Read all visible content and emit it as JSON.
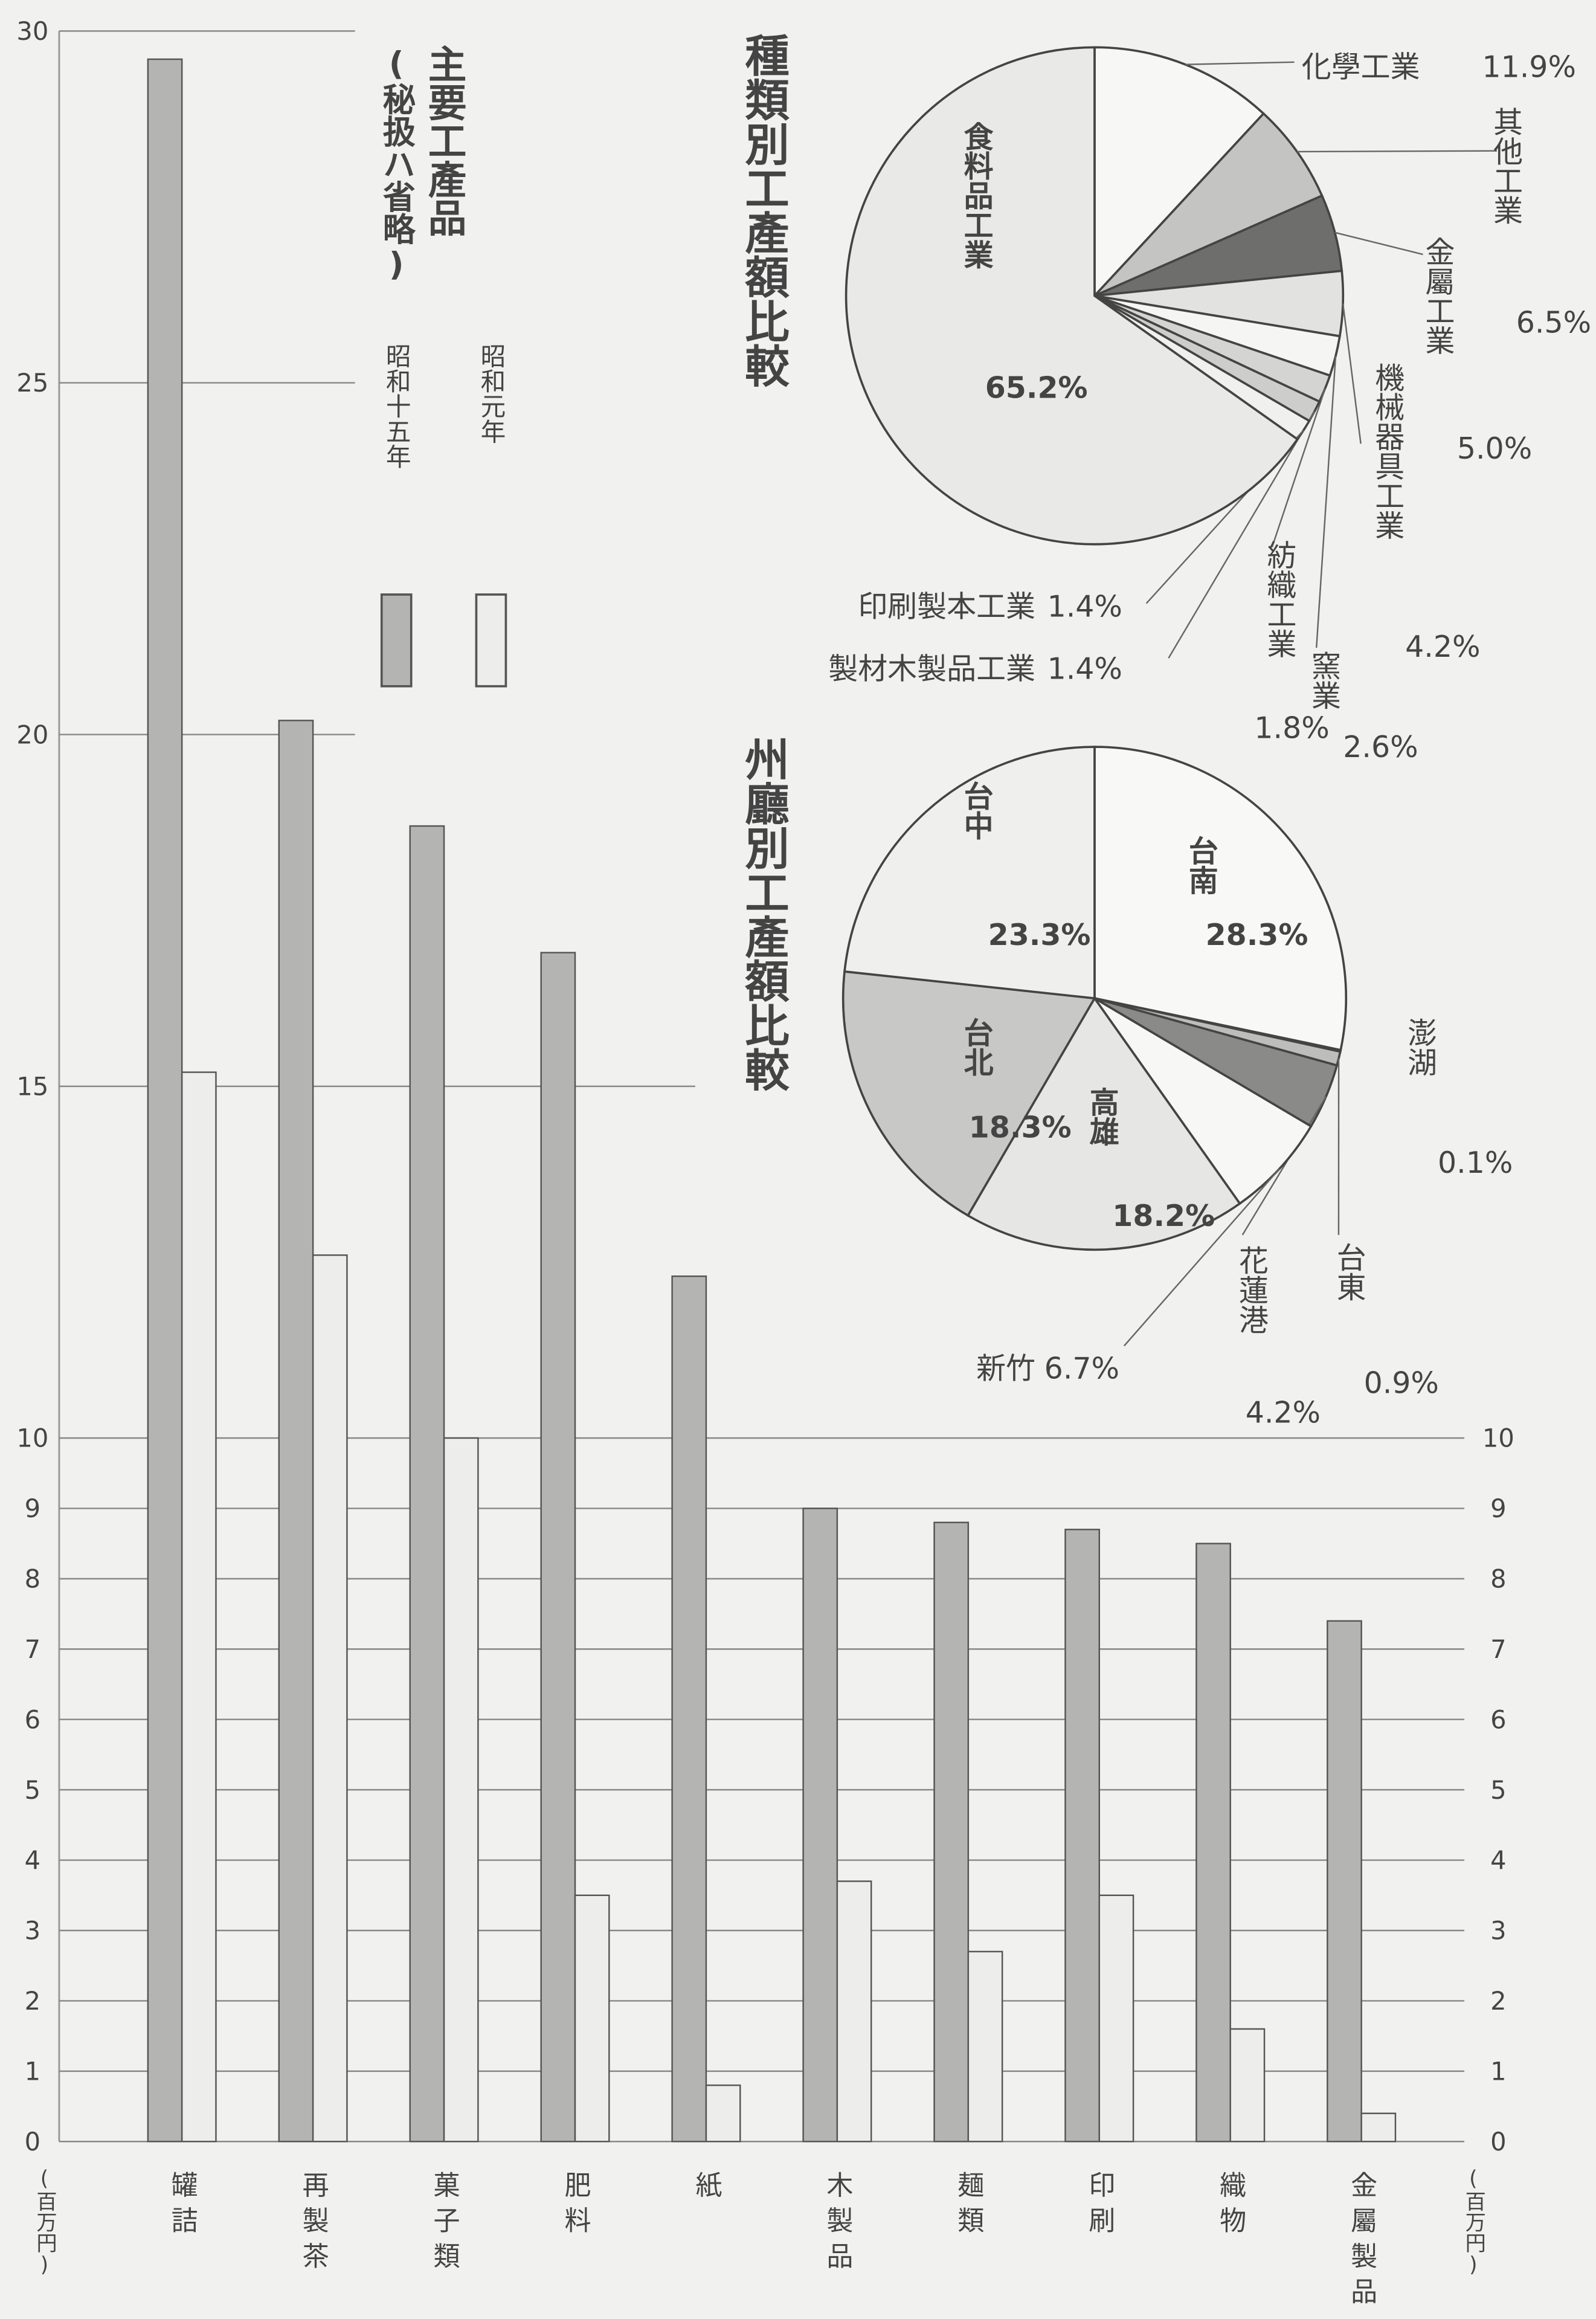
{
  "chart_data": [
    {
      "type": "bar",
      "title": "主要工產品",
      "subtitle": "(秘扱ハ省略)",
      "ylabel": "(百万円)",
      "y2label": "(百万円)",
      "categories": [
        "罐詰",
        "再製茶",
        "菓子類",
        "肥料",
        "紙",
        "木製品",
        "麺類",
        "印刷",
        "織物",
        "金屬製品"
      ],
      "series": [
        {
          "name": "昭和十五年",
          "color": "#b4b4b2",
          "values": [
            29.6,
            20.2,
            18.7,
            16.9,
            12.3,
            9.0,
            8.8,
            8.7,
            8.5,
            7.4
          ]
        },
        {
          "name": "昭和元年",
          "color": "#ededeb",
          "values": [
            15.2,
            12.6,
            10.0,
            3.5,
            0.8,
            3.7,
            2.7,
            3.5,
            1.6,
            0.4
          ]
        }
      ],
      "ylim": [
        0,
        30
      ],
      "yticks": [
        0,
        1,
        2,
        3,
        4,
        5,
        6,
        7,
        8,
        9,
        10,
        15,
        20,
        25,
        30
      ],
      "y2lim": [
        0,
        30
      ],
      "y2ticks": [
        0,
        1,
        2,
        3,
        4,
        5,
        6,
        7,
        8,
        9,
        10
      ],
      "grid": true
    },
    {
      "type": "pie",
      "title": "種類別工產額比較",
      "labels": [
        "化學工業",
        "其他工業",
        "金屬工業",
        "機械器具工業",
        "窯業",
        "紡織工業",
        "製材木製品工業",
        "印刷製本工業",
        "食料品工業"
      ],
      "values": [
        11.9,
        6.5,
        5.0,
        4.2,
        2.6,
        1.8,
        1.4,
        1.4,
        65.2
      ],
      "value_labels": [
        "11.9%",
        "6.5%",
        "5.0%",
        "4.2%",
        "2.6%",
        "1.8%",
        "1.4%",
        "1.4%",
        "65.2%"
      ],
      "colors": [
        "#f7f7f5",
        "#c4c4c2",
        "#6e6e6c",
        "#e2e2e0",
        "#f5f5f3",
        "#d4d4d2",
        "#cdcdcb",
        "#f0f0ee",
        "#e9e9e7"
      ]
    },
    {
      "type": "pie",
      "title": "州廳別工產額比較",
      "labels": [
        "台南",
        "澎湖",
        "台東",
        "花蓮港",
        "新竹",
        "高雄",
        "台北",
        "台中"
      ],
      "values": [
        28.3,
        0.1,
        0.9,
        4.2,
        6.7,
        18.2,
        18.3,
        23.3
      ],
      "value_labels": [
        "28.3%",
        "0.1%",
        "0.9%",
        "4.2%",
        "6.7%",
        "18.2%",
        "18.3%",
        "23.3%"
      ],
      "colors": [
        "#f8f8f6",
        "#d0d0ce",
        "#bdbdbb",
        "#8a8a88",
        "#f7f7f5",
        "#e6e6e4",
        "#c8c8c6",
        "#efefed"
      ]
    }
  ]
}
